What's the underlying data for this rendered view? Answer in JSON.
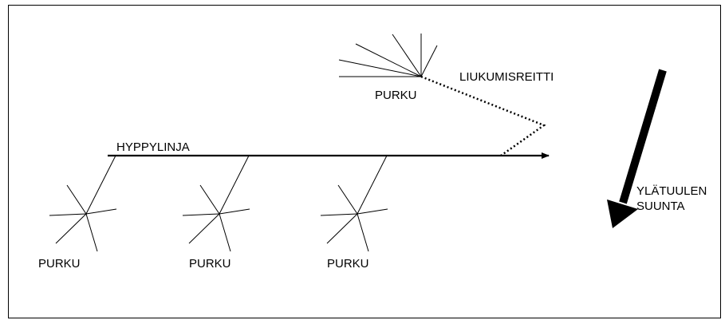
{
  "labels": {
    "jump_line": "HYPPYLINJA",
    "glide_route": "LIUKUMISREITTI",
    "release_top": "PURKU",
    "release_1": "PURKU",
    "release_2": "PURKU",
    "release_3": "PURKU",
    "upwind_line1": "YLÄTUULEN",
    "upwind_line2": "SUUNTA"
  },
  "colors": {
    "ink": "#000000",
    "background": "#ffffff"
  }
}
